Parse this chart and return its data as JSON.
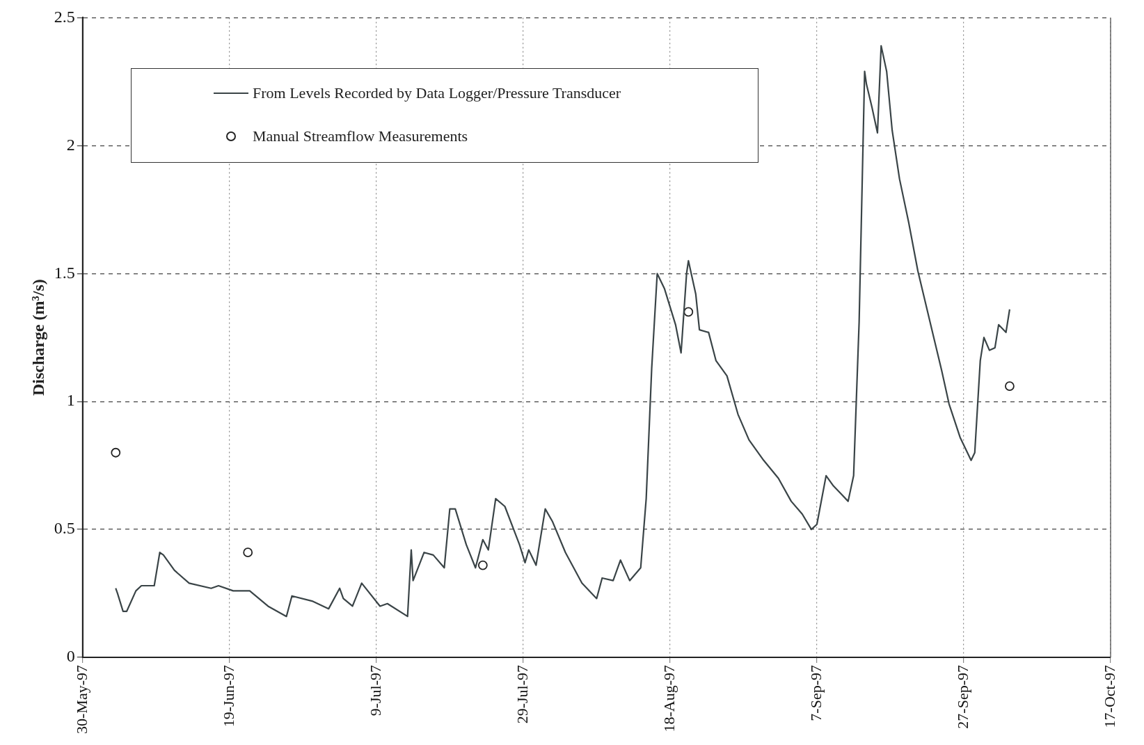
{
  "chart_data": {
    "type": "line",
    "ylabel": "Discharge (m³/s)",
    "xlim": [
      "1997-05-30",
      "1997-10-17"
    ],
    "xticks": [
      {
        "value": "1997-05-30",
        "label": "30-May-97"
      },
      {
        "value": "1997-06-19",
        "label": "19-Jun-97"
      },
      {
        "value": "1997-07-09",
        "label": "9-Jul-97"
      },
      {
        "value": "1997-07-29",
        "label": "29-Jul-97"
      },
      {
        "value": "1997-08-18",
        "label": "18-Aug-97"
      },
      {
        "value": "1997-09-07",
        "label": "7-Sep-97"
      },
      {
        "value": "1997-09-27",
        "label": "27-Sep-97"
      },
      {
        "value": "1997-10-17",
        "label": "17-Oct-97"
      }
    ],
    "ylim": [
      0,
      2.5
    ],
    "yticks": [
      0,
      0.5,
      1,
      1.5,
      2,
      2.5
    ],
    "grid": true,
    "legend": "top left",
    "series": [
      {
        "name": "From Levels Recorded by Data Logger/Pressure Transducer",
        "color": "#3a4447",
        "x": [
          "1997-06-03T12:00",
          "1997-06-03T18:00",
          "1997-06-04T12:00",
          "1997-06-05T00:00",
          "1997-06-06T06:00",
          "1997-06-07T00:00",
          "1997-06-08T18:00",
          "1997-06-09T12:00",
          "1997-06-10T00:00",
          "1997-06-11T12:00",
          "1997-06-13T12:00",
          "1997-06-16T12:00",
          "1997-06-17T12:00",
          "1997-06-19T12:00",
          "1997-06-21T18:00",
          "1997-06-24T06:00",
          "1997-06-26T18:00",
          "1997-06-27T12:00",
          "1997-06-30T06:00",
          "1997-07-02T12:00",
          "1997-07-04T00:00",
          "1997-07-04T12:00",
          "1997-07-05T18:00",
          "1997-07-07T00:00",
          "1997-07-09T12:00",
          "1997-07-10T12:00",
          "1997-07-13T06:00",
          "1997-07-13T18:00",
          "1997-07-14T00:00",
          "1997-07-15T12:00",
          "1997-07-16T18:00",
          "1997-07-18T06:00",
          "1997-07-19T00:00",
          "1997-07-19T18:00",
          "1997-07-21T06:00",
          "1997-07-22T12:00",
          "1997-07-23T12:00",
          "1997-07-24T06:00",
          "1997-07-25T06:00",
          "1997-07-26T12:00",
          "1997-07-28T12:00",
          "1997-07-29T06:00",
          "1997-07-29T18:00",
          "1997-07-30T18:00",
          "1997-08-01T00:00",
          "1997-08-02T00:00",
          "1997-08-03T18:00",
          "1997-08-06T00:00",
          "1997-08-08T00:00",
          "1997-08-08T18:00",
          "1997-08-10T06:00",
          "1997-08-11T06:00",
          "1997-08-12T12:00",
          "1997-08-14T00:00",
          "1997-08-14T18:00",
          "1997-08-15T12:00",
          "1997-08-16T06:00",
          "1997-08-17T06:00",
          "1997-08-18T18:00",
          "1997-08-19T12:00",
          "1997-08-20T06:00",
          "1997-08-20T12:00",
          "1997-08-21T12:00",
          "1997-08-22T00:00",
          "1997-08-23T06:00",
          "1997-08-24T06:00",
          "1997-08-25T18:00",
          "1997-08-27T06:00",
          "1997-08-28T18:00",
          "1997-08-30T18:00",
          "1997-09-01T18:00",
          "1997-09-03T12:00",
          "1997-09-05T00:00",
          "1997-09-06T06:00",
          "1997-09-07T00:00",
          "1997-09-08T06:00",
          "1997-09-09T06:00",
          "1997-09-10T06:00",
          "1997-09-11T06:00",
          "1997-09-12T00:00",
          "1997-09-12T18:00",
          "1997-09-13T12:00",
          "1997-09-13T18:00",
          "1997-09-14T12:00",
          "1997-09-15T06:00",
          "1997-09-15T18:00",
          "1997-09-16T12:00",
          "1997-09-17T06:00",
          "1997-09-18T06:00",
          "1997-09-19T12:00",
          "1997-09-20T18:00",
          "1997-09-21T18:00",
          "1997-09-23T00:00",
          "1997-09-24T00:00",
          "1997-09-25T00:00",
          "1997-09-26T12:00",
          "1997-09-28T00:00",
          "1997-09-28T12:00",
          "1997-09-29T06:00",
          "1997-09-29T18:00",
          "1997-09-30T12:00",
          "1997-10-01T06:00",
          "1997-10-01T18:00",
          "1997-10-02T18:00",
          "1997-10-03T06:00"
        ],
        "values": [
          0.27,
          0.25,
          0.18,
          0.18,
          0.26,
          0.28,
          0.28,
          0.41,
          0.4,
          0.34,
          0.29,
          0.27,
          0.28,
          0.26,
          0.26,
          0.2,
          0.16,
          0.24,
          0.22,
          0.19,
          0.27,
          0.23,
          0.2,
          0.29,
          0.2,
          0.21,
          0.16,
          0.42,
          0.3,
          0.41,
          0.4,
          0.35,
          0.58,
          0.58,
          0.44,
          0.35,
          0.46,
          0.42,
          0.62,
          0.59,
          0.44,
          0.37,
          0.42,
          0.36,
          0.58,
          0.53,
          0.41,
          0.29,
          0.23,
          0.31,
          0.3,
          0.38,
          0.3,
          0.35,
          0.62,
          1.13,
          1.5,
          1.44,
          1.3,
          1.19,
          1.5,
          1.55,
          1.42,
          1.28,
          1.27,
          1.16,
          1.1,
          0.95,
          0.85,
          0.77,
          0.7,
          0.61,
          0.56,
          0.5,
          0.52,
          0.71,
          0.67,
          0.64,
          0.61,
          0.71,
          1.31,
          2.29,
          2.24,
          2.15,
          2.05,
          2.39,
          2.29,
          2.06,
          1.87,
          1.7,
          1.51,
          1.39,
          1.24,
          1.12,
          0.99,
          0.86,
          0.77,
          0.8,
          1.16,
          1.25,
          1.2,
          1.21,
          1.3,
          1.27,
          1.36
        ]
      },
      {
        "name": "Manual Streamflow Measurements",
        "type": "scatter",
        "color": "#222222",
        "marker": "circle",
        "x": [
          "1997-06-03T12:00",
          "1997-06-21T12:00",
          "1997-07-23T12:00",
          "1997-08-20T12:00",
          "1997-10-03T06:00"
        ],
        "values": [
          0.8,
          0.41,
          0.36,
          1.35,
          1.06
        ]
      }
    ]
  }
}
